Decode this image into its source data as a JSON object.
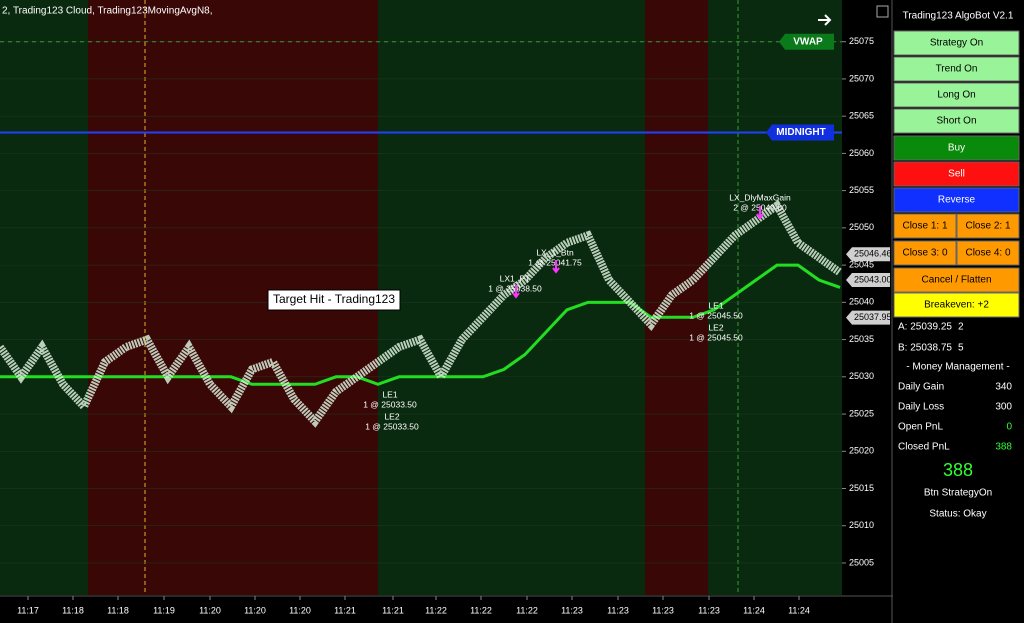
{
  "header": "2, Trading123 Cloud, Trading123MovingAvgN8,",
  "price_axis": {
    "ylim": [
      25000.7,
      25080.6
    ],
    "yticks": [
      25005,
      25010,
      25015,
      25020,
      25025,
      25030,
      25035,
      25040,
      25045,
      25050,
      25055,
      25060,
      25065,
      25070,
      25075
    ]
  },
  "time_labels": [
    "11:17",
    "11:18",
    "11:18",
    "11:19",
    "11:20",
    "11:20",
    "11:20",
    "11:21",
    "11:21",
    "11:22",
    "11:22",
    "11:22",
    "11:23",
    "11:23",
    "11:23",
    "11:23",
    "11:24",
    "11:24"
  ],
  "vwap": {
    "label": "VWAP",
    "value": 25075
  },
  "midnight": {
    "label": "MIDNIGHT",
    "value": 25062.8
  },
  "price_flags": [
    25046.46,
    {
      "value": 25043,
      "label": "25043.00"
    },
    25037.95
  ],
  "target_hit": "Target Hit - Trading123",
  "annotations": [
    {
      "title": "LX_1_Btn",
      "detail": "1 @ 25041.75"
    },
    {
      "title": "LX1_PT",
      "detail": "1 @ 25038.50"
    },
    {
      "title": "LX_DlyMaxGain",
      "detail": "2 @ 25049.00"
    },
    {
      "title": "LE1",
      "detail": "1 @ 25033.50"
    },
    {
      "title": "LE2",
      "detail": "1 @ 25033.50"
    },
    {
      "title": "LE1",
      "detail": "1 @ 25045.50"
    },
    {
      "title": "LE2",
      "detail": "1 @ 25045.50"
    }
  ],
  "price_path": [
    25034,
    25030,
    25034,
    25029,
    25026,
    25032,
    25034,
    25035,
    25030,
    25034,
    25029,
    25026,
    25031,
    25032,
    25027,
    25024,
    25028,
    25030,
    25032,
    25034,
    25035,
    25030,
    25035,
    25038,
    25041,
    25043,
    25046,
    25048,
    25049,
    25043,
    25040,
    25037,
    25041,
    25043,
    25046,
    25049,
    25051,
    25053,
    25048,
    25046,
    25044
  ],
  "cloud": [
    25030,
    25030,
    25030,
    25030,
    25030,
    25030,
    25030,
    25030,
    25030,
    25030,
    25030,
    25030,
    25029,
    25029,
    25029,
    25029,
    25030,
    25030,
    25029,
    25030,
    25030,
    25030,
    25030,
    25030,
    25031,
    25033,
    25036,
    25039,
    25040,
    25040,
    25040,
    25038,
    25038,
    25038,
    25039,
    25041,
    25043,
    25045,
    25045,
    25043,
    25042
  ],
  "panel": {
    "title": "Trading123 AlgoBot V2.1",
    "buttons": [
      "Strategy On",
      "Trend On",
      "Long On",
      "Short On",
      "Buy",
      "Sell",
      "Reverse",
      "Close 1:  1",
      "Close 2:  1",
      "Close 3:  0",
      "Close 4:  0",
      "Cancel / Flatten",
      "Breakeven:  +2"
    ],
    "quotes": [
      {
        "label": "A: 25039.25",
        "size": 2
      },
      {
        "label": "B: 25038.75",
        "size": 5
      }
    ],
    "section": "- Money Management -",
    "stats": [
      {
        "label": "Daily Gain",
        "value": 340
      },
      {
        "label": "Daily Loss",
        "value": 300
      },
      {
        "label": "Open PnL",
        "value": 0
      },
      {
        "label": "Closed PnL",
        "value": 388
      }
    ],
    "big": 388,
    "message": "Btn StrategyOn",
    "status": "Status: Okay"
  }
}
